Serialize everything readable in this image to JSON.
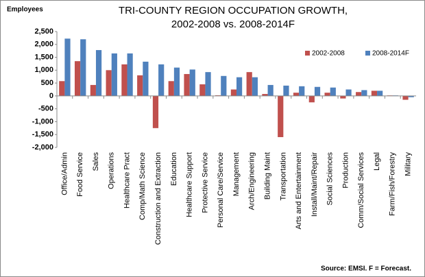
{
  "chart_data": {
    "type": "bar",
    "title": "TRI-COUNTY REGION OCCUPATION GROWTH,",
    "subtitle": "2002-2008 vs. 2008-2014F",
    "y_label": "Employees",
    "source": "Source: EMSI. F = Forecast.",
    "legend": "top-right",
    "grid": false,
    "categories": [
      "Office/Admin",
      "Food Service",
      "Sales",
      "Operations",
      "Healthcare Pract",
      "Comp/Math Science",
      "Construction and Extraction",
      "Education",
      "Healthcare Support",
      "Protective Service",
      "Personal Care/Service",
      "Management",
      "Arch/Engineering",
      "Building Maint",
      "Transportation",
      "Arts and Entertainment",
      "Install/Maint/Repair",
      "Social Sciences",
      "Production",
      "Comm/Social Services",
      "Legal",
      "Farm/Fish/Forestry",
      "Military"
    ],
    "series": [
      {
        "name": "2002-2008",
        "color": "#c0504d",
        "values": [
          575,
          1350,
          425,
          1000,
          1225,
          800,
          -1250,
          575,
          850,
          450,
          25,
          250,
          925,
          75,
          -1600,
          125,
          -250,
          125,
          -100,
          150,
          200,
          20,
          -150
        ]
      },
      {
        "name": "2008-2014F",
        "color": "#4f81bd",
        "values": [
          2225,
          2200,
          1780,
          1650,
          1650,
          1330,
          1225,
          1100,
          1025,
          925,
          775,
          725,
          725,
          425,
          400,
          375,
          350,
          325,
          250,
          225,
          200,
          20,
          -50
        ]
      }
    ],
    "ylim": [
      -2000,
      2500
    ],
    "yticks": [
      {
        "value": -2000,
        "label": "-2,000"
      },
      {
        "value": -1500,
        "label": "-1,500"
      },
      {
        "value": -1000,
        "label": "-1,000"
      },
      -500,
      0,
      500,
      {
        "value": 1000,
        "label": "1,000"
      },
      {
        "value": 1500,
        "label": "1,500"
      },
      {
        "value": 2000,
        "label": "2,000"
      },
      {
        "value": 2500,
        "label": "2,500"
      }
    ]
  }
}
